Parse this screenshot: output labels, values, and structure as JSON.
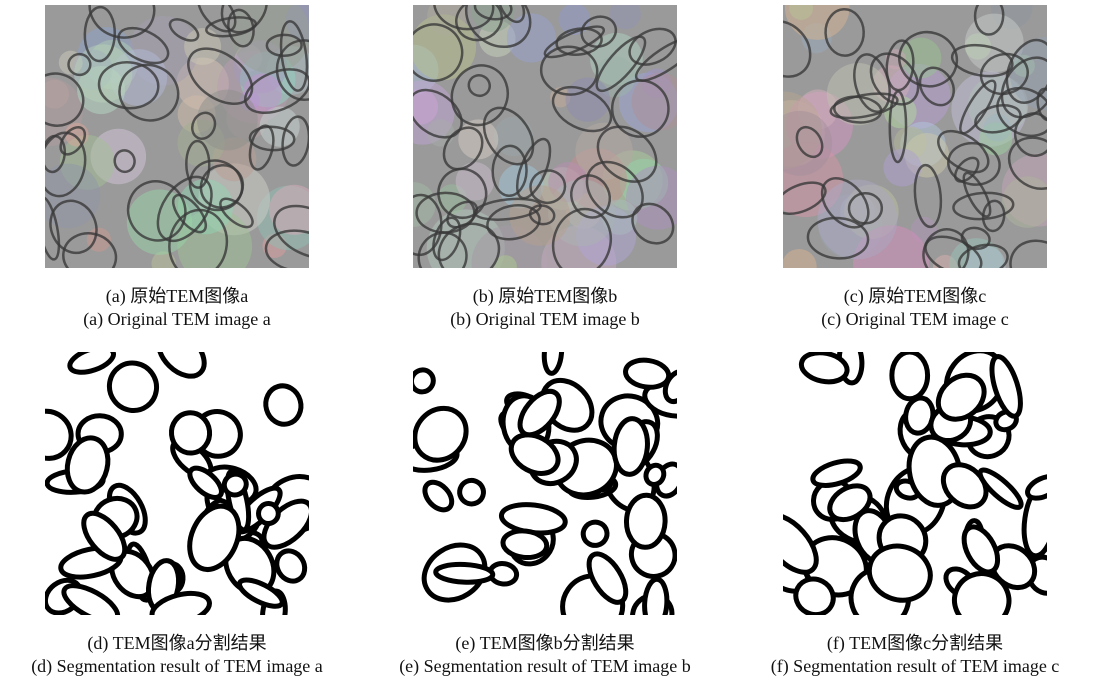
{
  "panels": [
    {
      "caption_zh": "(a) 原始TEM图像a",
      "caption_en": "(a) Original TEM image a"
    },
    {
      "caption_zh": "(b) 原始TEM图像b",
      "caption_en": "(b) Original TEM image b"
    },
    {
      "caption_zh": "(c) 原始TEM图像c",
      "caption_en": "(c) Original TEM image c"
    },
    {
      "caption_zh": "(d) TEM图像a分割结果",
      "caption_en": "(d) Segmentation result of TEM image a"
    },
    {
      "caption_zh": "(e) TEM图像b分割结果",
      "caption_en": "(e) Segmentation result of TEM image b"
    },
    {
      "caption_zh": "(f) TEM图像c分割结果",
      "caption_en": "(f) Segmentation result of TEM image c"
    }
  ]
}
